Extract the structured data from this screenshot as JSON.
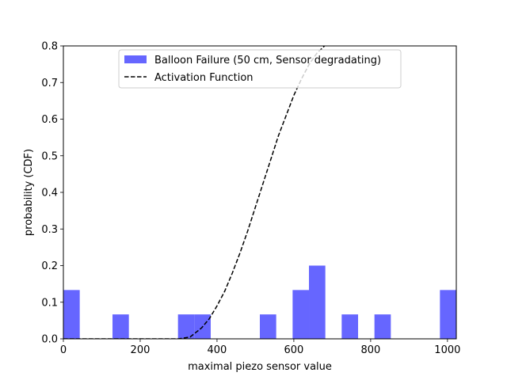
{
  "chart_data": {
    "type": "bar",
    "xlabel": "maximal piezo sensor value",
    "ylabel": "probability (CDF)",
    "xlim": [
      0,
      1023
    ],
    "ylim": [
      0,
      0.8
    ],
    "xticks": [
      0,
      200,
      400,
      600,
      800,
      1000
    ],
    "yticks": [
      0.0,
      0.1,
      0.2,
      0.3,
      0.4,
      0.5,
      0.6,
      0.7,
      0.8
    ],
    "legend": {
      "placement": "top-center"
    },
    "series": [
      {
        "name": "Balloon Failure (50 cm, Sensor degradating)",
        "kind": "histogram",
        "color": "#6666ff",
        "bins": [
          {
            "x0": 0,
            "x1": 42.6,
            "value": 0.1333
          },
          {
            "x0": 127.9,
            "x1": 170.5,
            "value": 0.0667
          },
          {
            "x0": 298.4,
            "x1": 341.0,
            "value": 0.0667
          },
          {
            "x0": 341.0,
            "x1": 383.6,
            "value": 0.0667
          },
          {
            "x0": 511.5,
            "x1": 554.1,
            "value": 0.0667
          },
          {
            "x0": 596.8,
            "x1": 639.4,
            "value": 0.1333
          },
          {
            "x0": 639.4,
            "x1": 682.0,
            "value": 0.2
          },
          {
            "x0": 724.6,
            "x1": 767.3,
            "value": 0.0667
          },
          {
            "x0": 809.9,
            "x1": 852.5,
            "value": 0.0667
          },
          {
            "x0": 980.4,
            "x1": 1023.0,
            "value": 0.1333
          }
        ]
      },
      {
        "name": "Activation Function",
        "kind": "line",
        "style": "dashed",
        "color": "#000000",
        "x": [
          0,
          300,
          330,
          360,
          380,
          400,
          420,
          440,
          460,
          480,
          500,
          520,
          540,
          560,
          580,
          600,
          620,
          640,
          660,
          680,
          700,
          720
        ],
        "values": [
          0,
          0,
          0.005,
          0.03,
          0.055,
          0.09,
          0.13,
          0.18,
          0.235,
          0.295,
          0.36,
          0.425,
          0.49,
          0.555,
          0.61,
          0.665,
          0.71,
          0.75,
          0.78,
          0.8,
          0.815,
          0.83
        ]
      }
    ]
  }
}
